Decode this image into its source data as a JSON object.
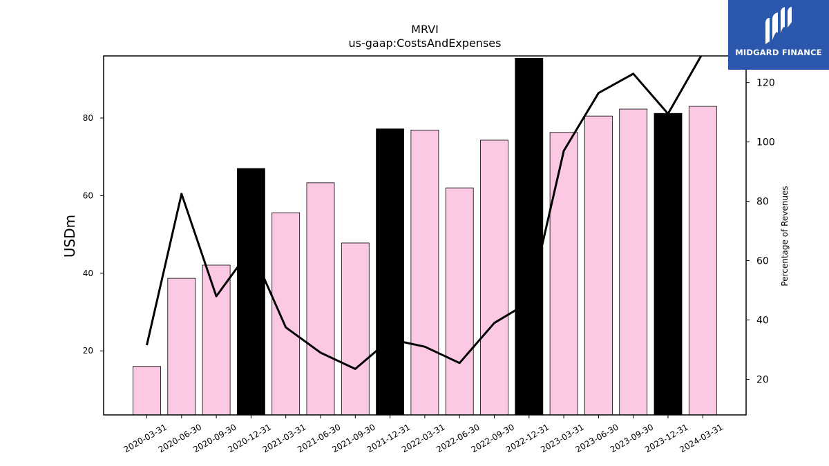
{
  "chart_data": {
    "type": "bar",
    "title": "MRVI",
    "subtitle": "us-gaap:CostsAndExpenses",
    "ylabel": "USDm",
    "y2label": "Percentage of Revenues",
    "categories": [
      "2020-03-31",
      "2020-06-30",
      "2020-09-30",
      "2020-12-31",
      "2021-03-31",
      "2021-06-30",
      "2021-09-30",
      "2021-12-31",
      "2022-03-31",
      "2022-06-30",
      "2022-09-30",
      "2022-12-31",
      "2023-03-31",
      "2023-06-30",
      "2023-09-30",
      "2023-12-31",
      "2024-03-31"
    ],
    "series": [
      {
        "type": "bar",
        "axis": "left",
        "values": [
          16.0,
          38.7,
          42.1,
          67.0,
          55.6,
          63.3,
          47.8,
          77.2,
          76.9,
          62.0,
          74.3,
          95.4,
          76.3,
          80.5,
          82.3,
          81.2,
          83.0
        ],
        "year_end": [
          false,
          false,
          false,
          true,
          false,
          false,
          false,
          true,
          false,
          false,
          false,
          true,
          false,
          false,
          false,
          true,
          false
        ]
      },
      {
        "type": "line",
        "axis": "right",
        "values": [
          31.5,
          82.5,
          48.0,
          64.0,
          37.5,
          29.0,
          23.5,
          33.5,
          31.0,
          25.5,
          39.0,
          46.0,
          97.0,
          116.5,
          123.0,
          109.5,
          130.0
        ]
      }
    ],
    "ylim": [
      3.5,
      96.0
    ],
    "yticks": [
      20,
      40,
      60,
      80
    ],
    "y2lim": [
      8.0,
      129.0
    ],
    "y2ticks": [
      20,
      40,
      60,
      80,
      100,
      120
    ],
    "colors": {
      "bar": "#fbc9e3",
      "bar_year_end": "#000000",
      "line": "#000000"
    },
    "grid": false,
    "legend": "none"
  },
  "logo": {
    "text": "MIDGARD FINANCE",
    "color": "#2b57ad",
    "icon": "midgard-logo-icon"
  }
}
